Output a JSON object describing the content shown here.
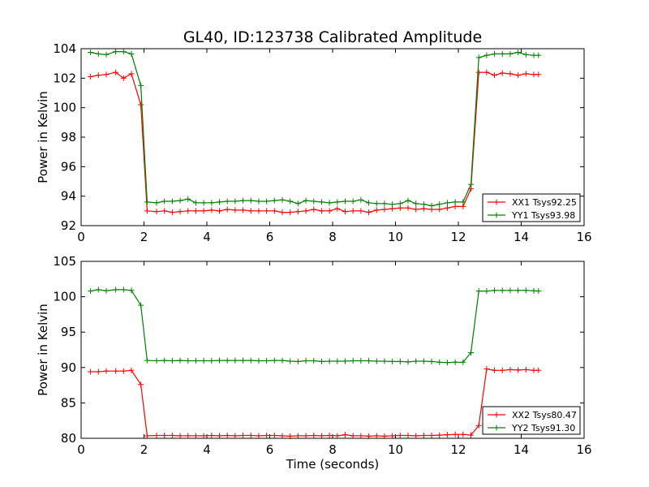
{
  "figure": {
    "title": "GL40, ID:123738 Calibrated Amplitude",
    "xlabel": "Time (seconds)"
  },
  "chart_data": [
    {
      "type": "line",
      "ylabel": "Power in Kelvin",
      "xlim": [
        0,
        16
      ],
      "ylim": [
        92,
        104
      ],
      "xticks": [
        "0",
        "2",
        "4",
        "6",
        "8",
        "10",
        "12",
        "14",
        "16"
      ],
      "yticks": [
        "92",
        "94",
        "96",
        "98",
        "100",
        "102",
        "104"
      ],
      "grid": false,
      "legend_position": "lower-right",
      "x": [
        0.3,
        0.55,
        0.8,
        1.1,
        1.35,
        1.6,
        1.9,
        2.1,
        2.4,
        2.65,
        2.9,
        3.15,
        3.4,
        3.65,
        3.9,
        4.15,
        4.4,
        4.65,
        4.9,
        5.15,
        5.4,
        5.65,
        5.9,
        6.15,
        6.4,
        6.65,
        6.9,
        7.15,
        7.4,
        7.65,
        7.9,
        8.15,
        8.4,
        8.65,
        8.9,
        9.15,
        9.4,
        9.65,
        9.9,
        10.15,
        10.4,
        10.65,
        10.9,
        11.15,
        11.4,
        11.65,
        11.9,
        12.15,
        12.4,
        12.65,
        12.9,
        13.15,
        13.4,
        13.65,
        13.9,
        14.15,
        14.4,
        14.55
      ],
      "series": [
        {
          "name": "XX1 Tsys92.25",
          "color": "#ff0000",
          "values": [
            102.1,
            102.2,
            102.25,
            102.4,
            102.0,
            102.3,
            100.2,
            93.0,
            92.95,
            93.0,
            92.9,
            92.95,
            93.0,
            93.0,
            93.0,
            93.05,
            93.0,
            93.1,
            93.05,
            93.05,
            93.0,
            93.0,
            93.0,
            93.0,
            92.9,
            92.9,
            92.95,
            93.0,
            93.1,
            93.0,
            93.0,
            93.15,
            92.95,
            93.0,
            93.0,
            92.9,
            93.05,
            93.1,
            93.15,
            93.2,
            93.2,
            93.1,
            93.15,
            93.1,
            93.1,
            93.2,
            93.3,
            93.3,
            94.5,
            102.4,
            102.4,
            102.2,
            102.35,
            102.3,
            102.2,
            102.3,
            102.25,
            102.25
          ]
        },
        {
          "name": "YY1 Tsys93.98",
          "color": "#008000",
          "values": [
            103.75,
            103.65,
            103.6,
            103.8,
            103.8,
            103.65,
            101.5,
            93.6,
            93.55,
            93.65,
            93.65,
            93.7,
            93.8,
            93.55,
            93.55,
            93.55,
            93.6,
            93.65,
            93.65,
            93.7,
            93.7,
            93.65,
            93.65,
            93.7,
            93.75,
            93.65,
            93.5,
            93.7,
            93.65,
            93.6,
            93.55,
            93.6,
            93.65,
            93.65,
            93.75,
            93.55,
            93.5,
            93.5,
            93.45,
            93.5,
            93.7,
            93.5,
            93.45,
            93.35,
            93.45,
            93.55,
            93.6,
            93.6,
            94.8,
            103.4,
            103.55,
            103.65,
            103.65,
            103.65,
            103.75,
            103.6,
            103.55,
            103.55
          ]
        }
      ]
    },
    {
      "type": "line",
      "ylabel": "Power in Kelvin",
      "xlabel": "Time (seconds)",
      "xlim": [
        0,
        16
      ],
      "ylim": [
        80,
        105
      ],
      "xticks": [
        "0",
        "2",
        "4",
        "6",
        "8",
        "10",
        "12",
        "14",
        "16"
      ],
      "yticks": [
        "80",
        "85",
        "90",
        "95",
        "100",
        "105"
      ],
      "grid": false,
      "legend_position": "lower-right",
      "x": [
        0.3,
        0.55,
        0.8,
        1.1,
        1.35,
        1.6,
        1.9,
        2.1,
        2.4,
        2.65,
        2.9,
        3.15,
        3.4,
        3.65,
        3.9,
        4.15,
        4.4,
        4.65,
        4.9,
        5.15,
        5.4,
        5.65,
        5.9,
        6.15,
        6.4,
        6.65,
        6.9,
        7.15,
        7.4,
        7.65,
        7.9,
        8.15,
        8.4,
        8.65,
        8.9,
        9.15,
        9.4,
        9.65,
        9.9,
        10.15,
        10.4,
        10.65,
        10.9,
        11.15,
        11.4,
        11.65,
        11.9,
        12.15,
        12.4,
        12.65,
        12.9,
        13.15,
        13.4,
        13.65,
        13.9,
        14.15,
        14.4,
        14.55
      ],
      "series": [
        {
          "name": "XX2 Tsys80.47",
          "color": "#ff0000",
          "values": [
            89.4,
            89.4,
            89.5,
            89.5,
            89.5,
            89.6,
            87.6,
            80.35,
            80.4,
            80.4,
            80.4,
            80.35,
            80.35,
            80.35,
            80.35,
            80.4,
            80.35,
            80.4,
            80.35,
            80.4,
            80.4,
            80.35,
            80.4,
            80.4,
            80.35,
            80.3,
            80.35,
            80.35,
            80.4,
            80.35,
            80.4,
            80.35,
            80.5,
            80.35,
            80.35,
            80.3,
            80.35,
            80.3,
            80.35,
            80.4,
            80.4,
            80.35,
            80.4,
            80.4,
            80.45,
            80.5,
            80.55,
            80.55,
            80.45,
            81.8,
            89.8,
            89.6,
            89.6,
            89.7,
            89.65,
            89.7,
            89.6,
            89.6
          ]
        },
        {
          "name": "YY2 Tsys91.30",
          "color": "#008000",
          "values": [
            100.8,
            101.0,
            100.85,
            101.0,
            101.0,
            100.9,
            98.8,
            91.0,
            90.95,
            91.0,
            90.95,
            91.0,
            90.95,
            90.95,
            90.95,
            90.95,
            91.0,
            91.0,
            91.0,
            91.0,
            91.0,
            90.95,
            90.95,
            91.0,
            91.0,
            90.9,
            90.85,
            90.95,
            90.95,
            90.85,
            90.9,
            90.9,
            90.9,
            90.95,
            90.95,
            90.95,
            90.9,
            90.9,
            90.85,
            90.85,
            90.8,
            90.9,
            90.9,
            90.85,
            90.75,
            90.7,
            90.75,
            90.75,
            92.1,
            100.8,
            100.8,
            100.9,
            100.9,
            100.9,
            100.9,
            100.9,
            100.85,
            100.8
          ]
        }
      ]
    }
  ]
}
